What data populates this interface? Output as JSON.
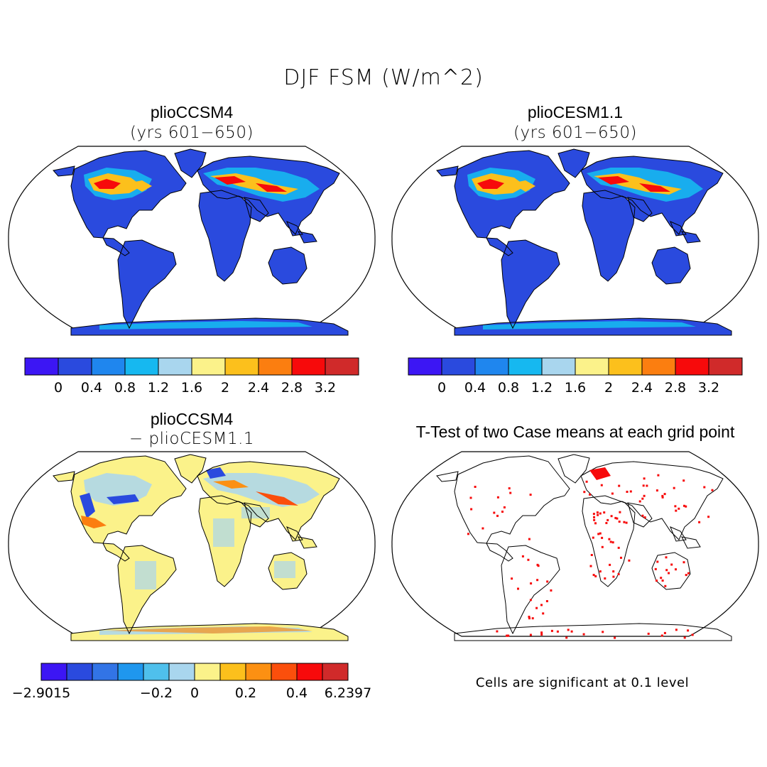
{
  "page": {
    "title": "DJF FSM (W/m^2)"
  },
  "panels": [
    {
      "id": "top-left",
      "title": "plioCCSM4",
      "subtitle": "(yrs 601−650)"
    },
    {
      "id": "top-right",
      "title": "plioCESM1.1",
      "subtitle": "(yrs 601−650)"
    },
    {
      "id": "bottom-left",
      "title": "plioCCSM4",
      "subtitle": "− plioCESM1.1"
    },
    {
      "id": "bottom-right",
      "title": "T-Test of two Case means at each grid point",
      "subtitle": ""
    }
  ],
  "colorbars": {
    "absolute": {
      "colors": [
        "#3c16f4",
        "#2a4ade",
        "#1f86ee",
        "#16b8f0",
        "#a9d6ee",
        "#fbf28a",
        "#fcc01c",
        "#fb7e10",
        "#f70a0b",
        "#d02a2a"
      ],
      "labels": [
        "0",
        "0.4",
        "0.8",
        "1.2",
        "1.6",
        "2",
        "2.4",
        "2.8",
        "3.2"
      ]
    },
    "difference": {
      "colors": [
        "#3c16f4",
        "#2a4ade",
        "#3274e6",
        "#1f97ee",
        "#4fc0ec",
        "#a9d6ee",
        "#fbf28a",
        "#fcc01c",
        "#fc9012",
        "#fb4f0c",
        "#f70a0b",
        "#d02a2a"
      ],
      "labels": [
        "−2.9015",
        "−0.2",
        "0",
        "0.2",
        "0.4",
        "6.2397"
      ]
    }
  },
  "note": "Cells are significant at 0.1 level",
  "colors": {
    "land_base": "#2a4ade",
    "diff_land": "#fbf28a",
    "significant": "#f70a0b"
  }
}
